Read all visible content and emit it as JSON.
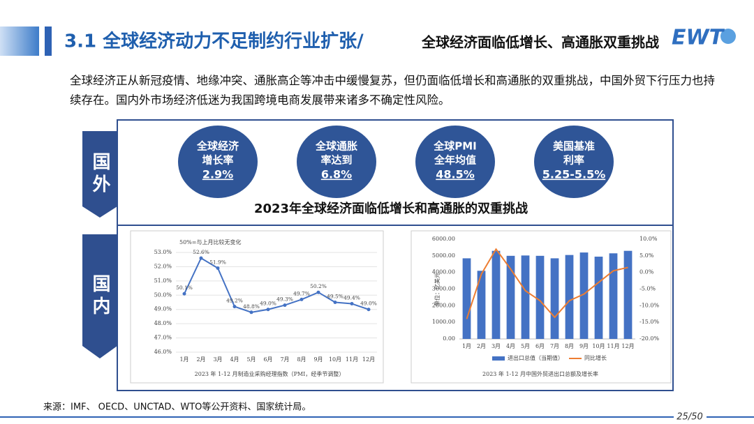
{
  "header": {
    "title": "3.1 全球经济动力不足制约行业扩张/",
    "subtitle": "全球经济面临低增长、高通胀双重挑战",
    "logo": "EWT"
  },
  "intro": "全球经济正从新冠疫情、地缘冲突、通胀高企等冲击中缓慢复苏，但仍面临低增长和高通胀的双重挑战，中国外贸下行压力也持续存在。国内外市场经济低迷为我国跨境电商发展带来诸多不确定性风险。",
  "sections": [
    "国外",
    "国内"
  ],
  "indicators": [
    {
      "label_lines": [
        "全球经济",
        "增长率"
      ],
      "value": "2.9%"
    },
    {
      "label_lines": [
        "全球通胀",
        "率达到"
      ],
      "value": "6.8%"
    },
    {
      "label_lines": [
        "全球PMI",
        "全年均值"
      ],
      "value": "48.5%"
    },
    {
      "label_lines": [
        "美国基准",
        "利率"
      ],
      "value": "5.25-5.5%"
    }
  ],
  "global_heading": "2023年全球经济面临低增长和高通胀的双重挑战",
  "chart_data": [
    {
      "type": "line",
      "title": "2023 年 1-12 月制造业采购经理指数（PMI，经季节调整）",
      "annotation": "50%=与上月比较无变化",
      "categories": [
        "1月",
        "2月",
        "3月",
        "4月",
        "5月",
        "6月",
        "7月",
        "8月",
        "9月",
        "10月",
        "11月",
        "12月"
      ],
      "values": [
        50.1,
        52.6,
        51.9,
        49.2,
        48.8,
        49.0,
        49.3,
        49.7,
        50.2,
        49.5,
        49.4,
        49.0
      ],
      "value_labels": [
        "50.1%",
        "52.6%",
        "51.9%",
        "49.2%",
        "48.8%",
        "49.0%",
        "49.3%",
        "49.7%",
        "50.2%",
        "49.5%",
        "49.4%",
        "49.0%"
      ],
      "color": "#4472c4",
      "grid": true,
      "ylim": [
        46,
        53
      ],
      "yticks": [
        {
          "value": 46,
          "label": "46.0%"
        },
        {
          "value": 47,
          "label": "47.0%"
        },
        {
          "value": 48,
          "label": "48.0%"
        },
        {
          "value": 49,
          "label": "49.0%"
        },
        {
          "value": 50,
          "label": "50.0%"
        },
        {
          "value": 51,
          "label": "51.0%"
        },
        {
          "value": 52,
          "label": "52.0%"
        },
        {
          "value": 53,
          "label": "53.0%"
        }
      ]
    },
    {
      "type": "bar",
      "title": "2023 年 1-12 月中国外贸进出口总额及增长率",
      "ylabel": "单位：亿美元",
      "categories": [
        "1月",
        "2月",
        "3月",
        "4月",
        "5月",
        "6月",
        "7月",
        "8月",
        "9月",
        "10月",
        "11月",
        "12月"
      ],
      "series": [
        {
          "name": "进出口总值（当期值）",
          "color": "#4472c4",
          "values": [
            4850,
            4100,
            5300,
            5000,
            5020,
            5000,
            4850,
            5050,
            5200,
            4950,
            5150,
            5300
          ]
        },
        {
          "name": "同比增长",
          "color": "#ed7d31",
          "type": "line",
          "axis": "y2",
          "values": [
            -14,
            -0.5,
            7,
            1,
            -5.5,
            -8.5,
            -13.5,
            -8.5,
            -6.5,
            -3,
            0.5,
            1.5
          ]
        }
      ],
      "grid": false,
      "ylim": [
        0,
        6000
      ],
      "yticks": [
        {
          "value": 0,
          "label": "0.00"
        },
        {
          "value": 1000,
          "label": "1000.00"
        },
        {
          "value": 2000,
          "label": "2000.00"
        },
        {
          "value": 3000,
          "label": "3000.00"
        },
        {
          "value": 4000,
          "label": "4000.00"
        },
        {
          "value": 5000,
          "label": "5000.00"
        },
        {
          "value": 6000,
          "label": "6000.00"
        }
      ],
      "y2lim": [
        -20,
        10
      ],
      "y2ticks": [
        {
          "value": -20,
          "label": "-20.0%"
        },
        {
          "value": -15,
          "label": "-15.0%"
        },
        {
          "value": -10,
          "label": "-10.0%"
        },
        {
          "value": -5,
          "label": "-5.0%"
        },
        {
          "value": 0,
          "label": "0.0%"
        },
        {
          "value": 5,
          "label": "5.0%"
        },
        {
          "value": 10,
          "label": "10.0%"
        }
      ]
    }
  ],
  "source": "来源：IMF、 OECD、UNCTAD、WTO等公开资料、国家统计局。",
  "page": "25/50"
}
